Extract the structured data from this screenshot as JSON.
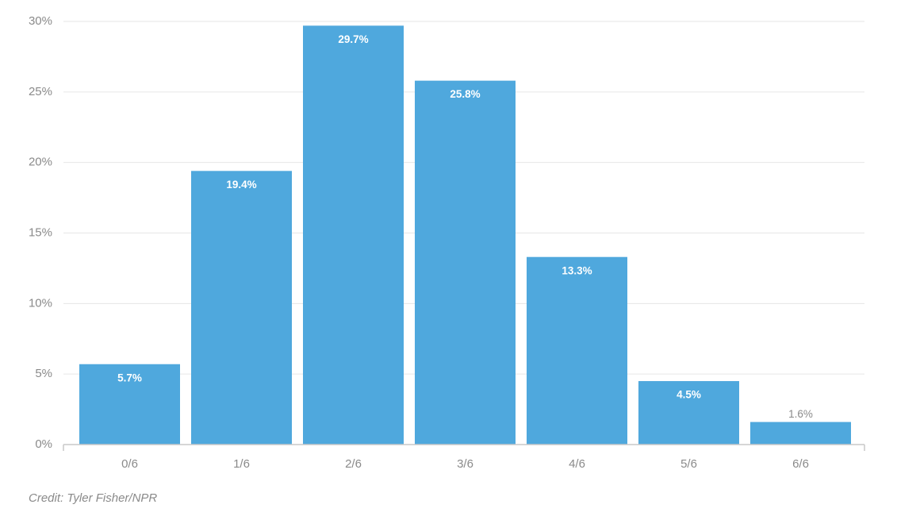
{
  "chart_data": {
    "type": "bar",
    "categories": [
      "0/6",
      "1/6",
      "2/6",
      "3/6",
      "4/6",
      "5/6",
      "6/6"
    ],
    "values": [
      5.7,
      19.4,
      29.7,
      25.8,
      13.3,
      4.5,
      1.6
    ],
    "value_labels": [
      "5.7%",
      "19.4%",
      "29.7%",
      "25.8%",
      "13.3%",
      "4.5%",
      "1.6%"
    ],
    "y_ticks": [
      0,
      5,
      10,
      15,
      20,
      25,
      30
    ],
    "y_tick_labels": [
      "0%",
      "5%",
      "10%",
      "15%",
      "20%",
      "25%",
      "30%"
    ],
    "ylim": [
      0,
      30
    ],
    "grid": true,
    "title": "",
    "xlabel": "",
    "ylabel": "",
    "colors": {
      "bar": "#4fa8dd",
      "label_inside": "#ffffff",
      "label_outside": "#8a8a8a"
    }
  },
  "credit": "Credit: Tyler Fisher/NPR"
}
